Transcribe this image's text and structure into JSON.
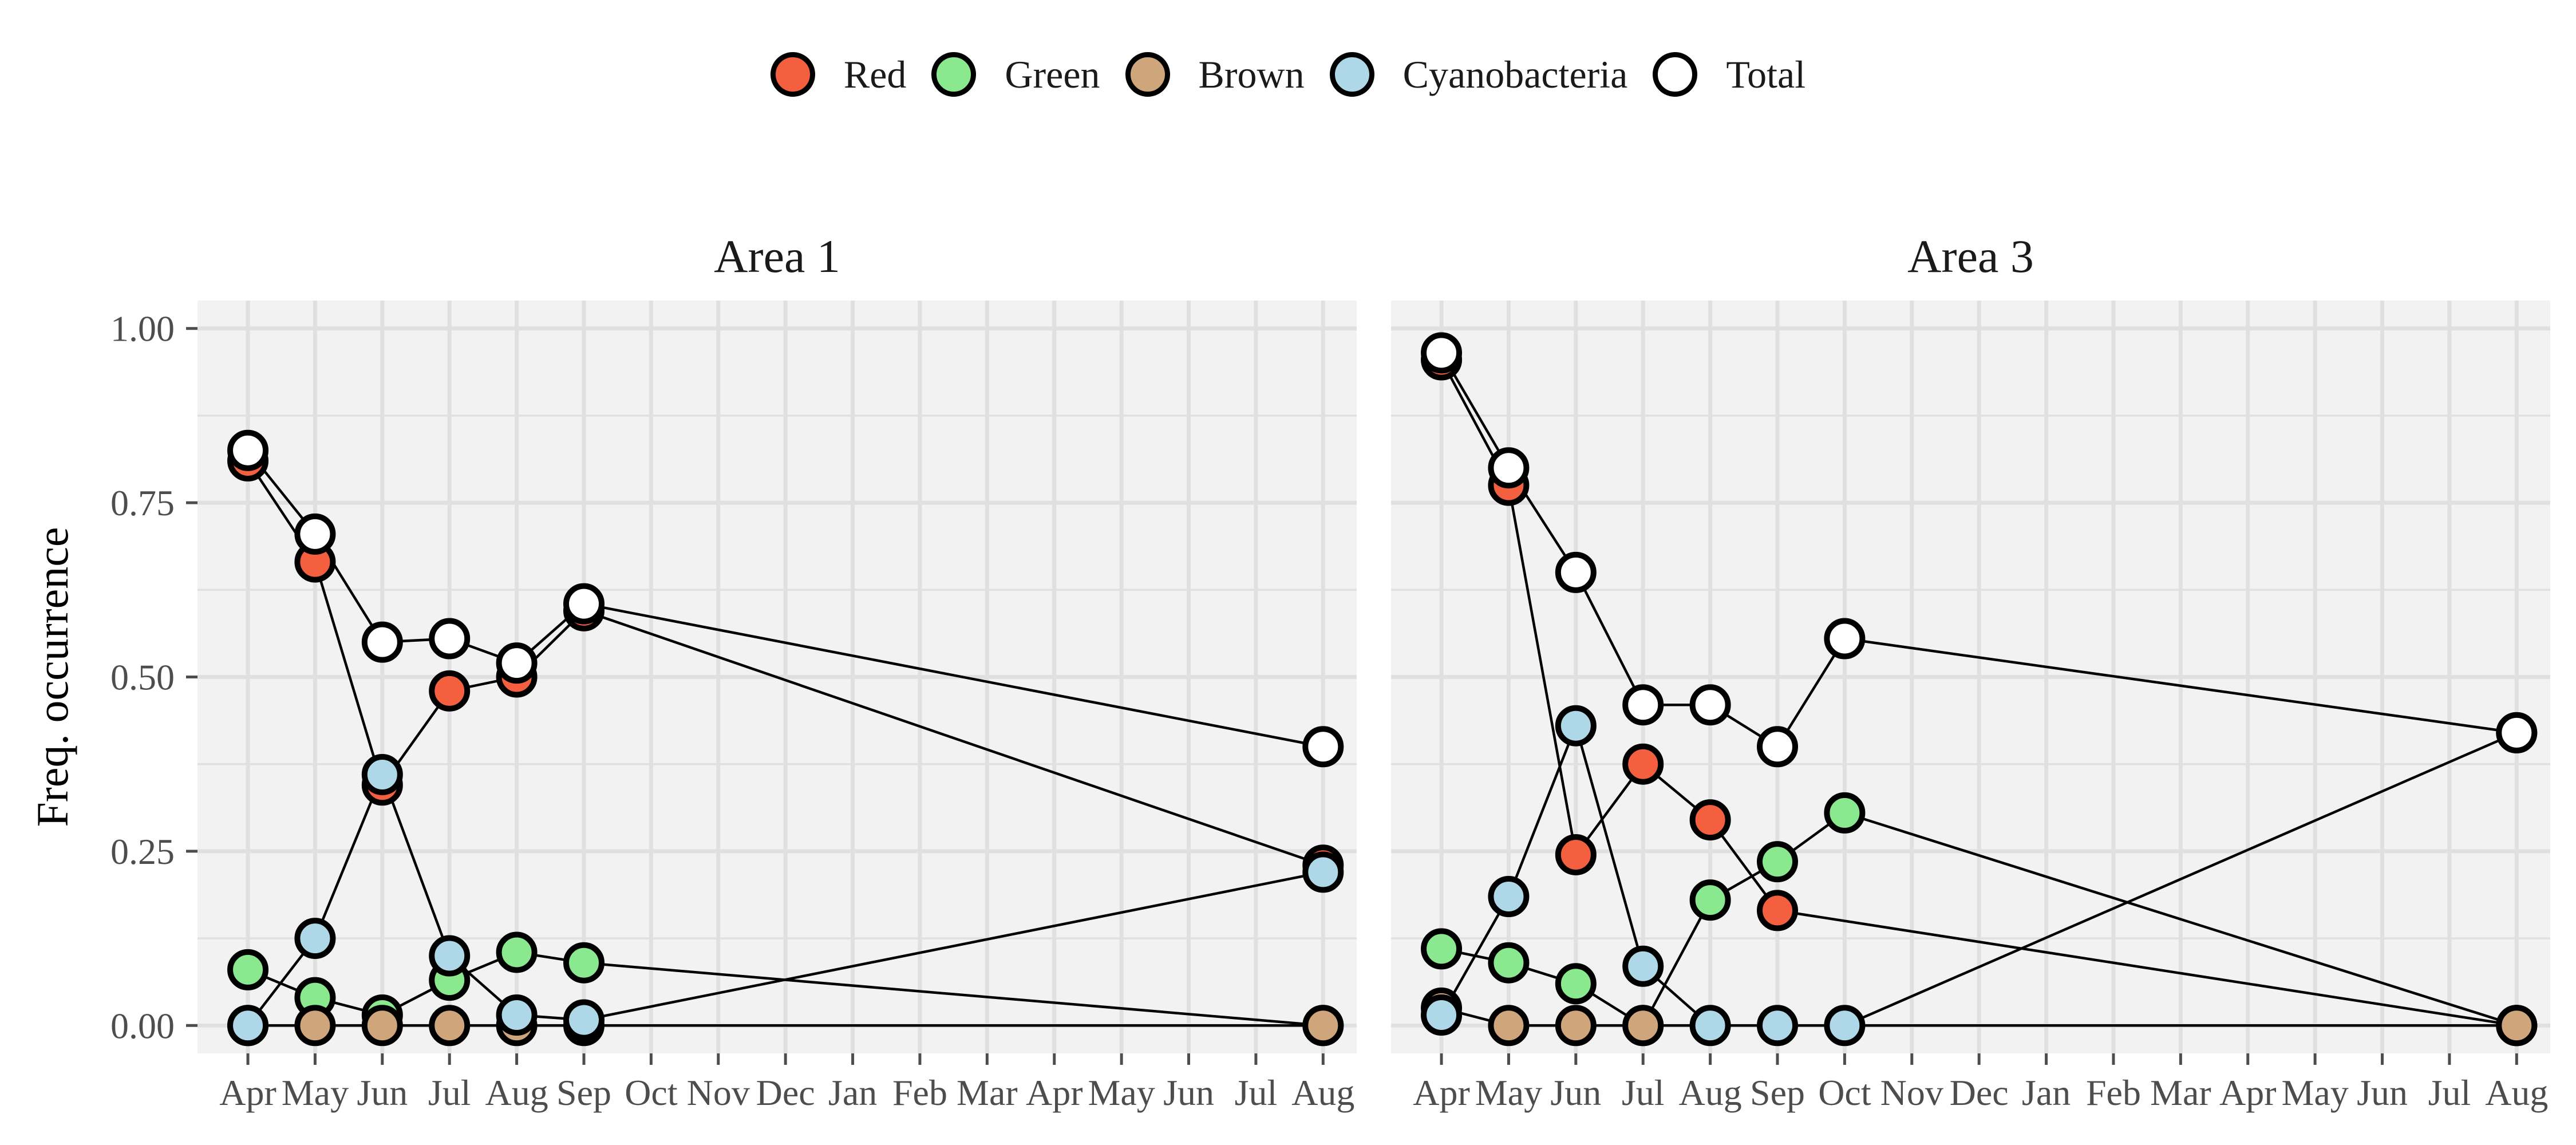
{
  "chart_data": {
    "type": "line",
    "ylabel": "Freq. occurrence",
    "xlabel": "",
    "ylim": [
      -0.04,
      1.04
    ],
    "yticks": [
      "0.00",
      "0.25",
      "0.50",
      "0.75",
      "1.00"
    ],
    "yticks_values": [
      0,
      0.25,
      0.5,
      0.75,
      1.0
    ],
    "x_tick_labels": [
      "Apr",
      "May",
      "Jun",
      "Jul",
      "Aug",
      "Sep",
      "Oct",
      "Nov",
      "Dec",
      "Jan",
      "Feb",
      "Mar",
      "Apr",
      "May",
      "Jun",
      "Jul",
      "Aug"
    ],
    "legend": [
      {
        "name": "Red",
        "color": "#f4603f"
      },
      {
        "name": "Green",
        "color": "#8ae88f"
      },
      {
        "name": "Brown",
        "color": "#cfa67b"
      },
      {
        "name": "Cyanobacteria",
        "color": "#aed8e8"
      },
      {
        "name": "Total",
        "color": "#ffffff"
      }
    ],
    "legend_position": "top",
    "grid": true,
    "panels": [
      {
        "title": "Area 1",
        "series": [
          {
            "name": "Red",
            "points": [
              [
                0,
                0.81
              ],
              [
                1,
                0.665
              ],
              [
                2,
                0.345
              ],
              [
                3,
                0.48
              ],
              [
                4,
                0.5
              ],
              [
                5,
                0.595
              ],
              [
                16,
                0.23
              ]
            ]
          },
          {
            "name": "Green",
            "points": [
              [
                0,
                0.08
              ],
              [
                1,
                0.04
              ],
              [
                2,
                0.015
              ],
              [
                3,
                0.065
              ],
              [
                4,
                0.105
              ],
              [
                5,
                0.09
              ],
              [
                16,
                0.0
              ]
            ]
          },
          {
            "name": "Brown",
            "points": [
              [
                0,
                0.0
              ],
              [
                1,
                0.0
              ],
              [
                2,
                0.0
              ],
              [
                3,
                0.0
              ],
              [
                4,
                0.0
              ],
              [
                5,
                0.0
              ],
              [
                16,
                0.0
              ]
            ]
          },
          {
            "name": "Cyanobacteria",
            "points": [
              [
                0,
                0.0
              ],
              [
                1,
                0.125
              ],
              [
                2,
                0.36
              ],
              [
                3,
                0.1
              ],
              [
                4,
                0.015
              ],
              [
                5,
                0.008
              ],
              [
                16,
                0.22
              ]
            ]
          },
          {
            "name": "Total",
            "points": [
              [
                0,
                0.825
              ],
              [
                1,
                0.705
              ],
              [
                2,
                0.55
              ],
              [
                3,
                0.555
              ],
              [
                4,
                0.52
              ],
              [
                5,
                0.605
              ],
              [
                16,
                0.4
              ]
            ]
          }
        ]
      },
      {
        "title": "Area 3",
        "series": [
          {
            "name": "Red",
            "points": [
              [
                0,
                0.955
              ],
              [
                1,
                0.775
              ],
              [
                2,
                0.245
              ],
              [
                3,
                0.375
              ],
              [
                4,
                0.295
              ],
              [
                5,
                0.165
              ],
              [
                16,
                0.0
              ]
            ]
          },
          {
            "name": "Green",
            "points": [
              [
                0,
                0.11
              ],
              [
                1,
                0.09
              ],
              [
                2,
                0.06
              ],
              [
                3,
                0.0
              ],
              [
                4,
                0.18
              ],
              [
                5,
                0.235
              ],
              [
                6,
                0.305
              ],
              [
                16,
                0.0
              ]
            ]
          },
          {
            "name": "Brown",
            "points": [
              [
                0,
                0.025
              ],
              [
                1,
                0.0
              ],
              [
                2,
                0.0
              ],
              [
                3,
                0.0
              ],
              [
                16,
                0.0
              ]
            ]
          },
          {
            "name": "Cyanobacteria",
            "points": [
              [
                0,
                0.015
              ],
              [
                1,
                0.185
              ],
              [
                2,
                0.43
              ],
              [
                3,
                0.085
              ],
              [
                4,
                0.0
              ],
              [
                5,
                0.0
              ],
              [
                6,
                0.0
              ],
              [
                16,
                0.42
              ]
            ]
          },
          {
            "name": "Total",
            "points": [
              [
                0,
                0.965
              ],
              [
                1,
                0.8
              ],
              [
                2,
                0.65
              ],
              [
                3,
                0.46
              ],
              [
                4,
                0.46
              ],
              [
                5,
                0.4
              ],
              [
                6,
                0.555
              ],
              [
                16,
                0.42
              ]
            ]
          }
        ]
      }
    ]
  }
}
